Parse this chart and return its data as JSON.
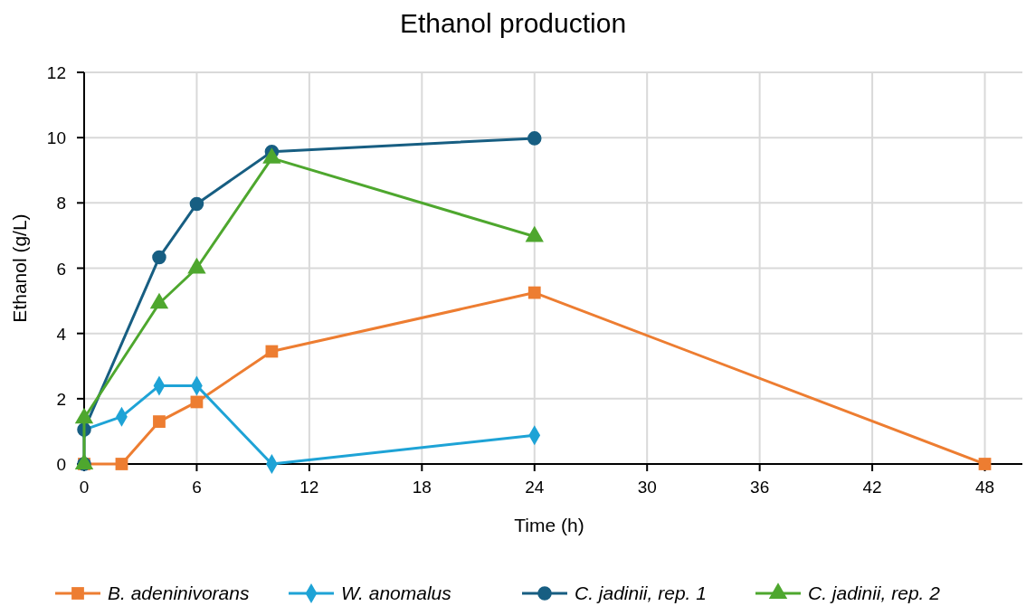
{
  "chart_data": {
    "type": "line",
    "title": "Ethanol production",
    "xlabel": "Time (h)",
    "ylabel": "Ethanol (g/L)",
    "xlim": [
      0,
      50
    ],
    "xticks": [
      0,
      6,
      12,
      18,
      24,
      30,
      36,
      42,
      48
    ],
    "ylim": [
      0,
      12
    ],
    "yticks": [
      0,
      2,
      4,
      6,
      8,
      10,
      12
    ],
    "grid": true,
    "legend": "bottom",
    "line_style": "solid",
    "series": [
      {
        "name": "B. adeninivorans",
        "color": "#ed7d31",
        "marker": "square",
        "x": [
          0,
          2,
          4,
          6,
          10,
          24,
          48
        ],
        "values": [
          0,
          0,
          1.3,
          1.9,
          3.45,
          5.25,
          0
        ]
      },
      {
        "name": "W. anomalus",
        "color": "#1ea3d6",
        "marker": "diamond",
        "x": [
          0,
          2,
          4,
          6,
          10,
          24
        ],
        "values": [
          1.05,
          1.45,
          2.4,
          2.4,
          0,
          0.88
        ]
      },
      {
        "name": "C. jadinii, rep. 1",
        "color": "#175e82",
        "marker": "circle",
        "x": [
          0,
          0,
          4,
          6,
          10,
          24
        ],
        "values": [
          0,
          1.05,
          6.33,
          7.97,
          9.57,
          9.98
        ]
      },
      {
        "name": "C. jadinii, rep. 2",
        "color": "#4ea72e",
        "marker": "triangle",
        "x": [
          0,
          0,
          4,
          6,
          10,
          24
        ],
        "values": [
          0,
          1.4,
          4.92,
          6,
          9.37,
          6.97
        ]
      }
    ]
  }
}
